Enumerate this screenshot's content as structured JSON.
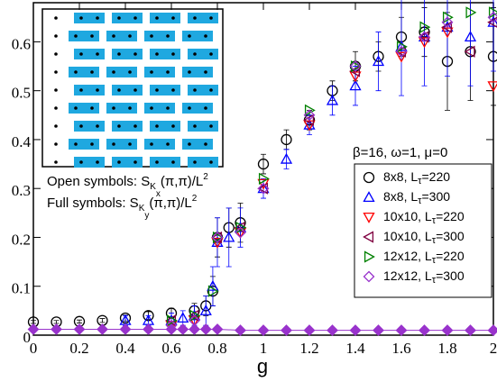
{
  "chart_data": {
    "type": "scatter",
    "x_label": "g",
    "xlim": [
      0,
      2
    ],
    "ylim": [
      0,
      0.68
    ],
    "xticks": [
      0,
      0.2,
      0.4,
      0.6,
      0.8,
      1,
      1.2,
      1.4,
      1.6,
      1.8,
      2
    ],
    "yticks": [
      0,
      0.1,
      0.2,
      0.3,
      0.4,
      0.5,
      0.6
    ],
    "params_label": "β=16, ω=1, μ=0",
    "inset_labels": [
      [
        "Open symbols: S",
        "K",
        "x",
        "(π,π)/L",
        "2"
      ],
      [
        "Full symbols: S",
        "K",
        "y",
        "(π,π)/L",
        "2"
      ]
    ],
    "legend": "lower right",
    "series": [
      {
        "name": "8x8, Lτ=220",
        "color": "#000000",
        "marker": "circle",
        "x": [
          0,
          0.1,
          0.2,
          0.3,
          0.4,
          0.5,
          0.6,
          0.7,
          0.75,
          0.78,
          0.8,
          0.85,
          0.9,
          1.0,
          1.1,
          1.2,
          1.3,
          1.4,
          1.5,
          1.6,
          1.7,
          1.8,
          1.9,
          2.0
        ],
        "values": [
          0.027,
          0.027,
          0.028,
          0.03,
          0.035,
          0.04,
          0.045,
          0.05,
          0.06,
          0.09,
          0.2,
          0.22,
          0.23,
          0.35,
          0.4,
          0.44,
          0.5,
          0.55,
          0.57,
          0.61,
          0.62,
          0.56,
          0.58,
          0.57
        ],
        "errors": [
          0.003,
          0.003,
          0.003,
          0.004,
          0.006,
          0.008,
          0.01,
          0.015,
          0.02,
          0.03,
          0.04,
          0.04,
          0.04,
          0.02,
          0.02,
          0.02,
          0.02,
          0.03,
          0.03,
          0.04,
          0.05,
          0.1,
          0.1,
          0.1
        ]
      },
      {
        "name": "8x8, Lτ=300",
        "color": "#0000ff",
        "marker": "up",
        "x": [
          0.4,
          0.5,
          0.6,
          0.65,
          0.7,
          0.75,
          0.78,
          0.8,
          0.85,
          0.9,
          1.0,
          1.1,
          1.2,
          1.3,
          1.4,
          1.5,
          1.6,
          1.7,
          1.8,
          1.9,
          2.0
        ],
        "values": [
          0.03,
          0.03,
          0.03,
          0.035,
          0.04,
          0.05,
          0.1,
          0.19,
          0.2,
          0.22,
          0.3,
          0.36,
          0.43,
          0.48,
          0.51,
          0.56,
          0.59,
          0.61,
          0.63,
          0.61,
          0.64
        ],
        "errors": [
          0.01,
          0.01,
          0.015,
          0.015,
          0.02,
          0.03,
          0.04,
          0.05,
          0.06,
          0.04,
          0.02,
          0.02,
          0.02,
          0.03,
          0.04,
          0.06,
          0.1,
          0.1,
          0.1,
          0.1,
          0.1
        ]
      },
      {
        "name": "10x10, Lτ=220",
        "color": "#ff0000",
        "marker": "down",
        "x": [
          0.6,
          0.7,
          0.8,
          0.9,
          1.0,
          1.2,
          1.4,
          1.6,
          1.7,
          1.8,
          2.0
        ],
        "values": [
          0.02,
          0.03,
          0.19,
          0.21,
          0.31,
          0.43,
          0.53,
          0.57,
          0.6,
          0.62,
          0.51
        ]
      },
      {
        "name": "10x10, Lτ=300",
        "color": "#800040",
        "marker": "left",
        "x": [
          0.6,
          0.7,
          0.8,
          0.9,
          1.0,
          1.2,
          1.4,
          1.6,
          1.7,
          1.8,
          1.9,
          2.0
        ],
        "values": [
          0.03,
          0.04,
          0.2,
          0.22,
          0.3,
          0.44,
          0.54,
          0.58,
          0.61,
          0.63,
          0.58,
          0.64
        ]
      },
      {
        "name": "12x12, Lτ=220",
        "color": "#008000",
        "marker": "right",
        "x": [
          0.6,
          0.7,
          0.78,
          0.8,
          0.9,
          1.0,
          1.2,
          1.4,
          1.6,
          1.7,
          1.8,
          1.9,
          2.0
        ],
        "values": [
          0.03,
          0.04,
          0.09,
          0.2,
          0.22,
          0.32,
          0.46,
          0.55,
          0.59,
          0.63,
          0.65,
          0.66,
          0.66
        ]
      },
      {
        "name": "12x12, Lτ=300",
        "color": "#9933cc",
        "marker": "diamond",
        "x": [
          0.6,
          0.7,
          0.8,
          0.9,
          1.0,
          1.2,
          1.4,
          1.6,
          1.7,
          1.8,
          2.0
        ],
        "values": [
          0.02,
          0.03,
          0.2,
          0.21,
          0.3,
          0.45,
          0.55,
          0.58,
          0.61,
          0.64,
          0.65
        ]
      },
      {
        "color": "#9933cc",
        "marker": "diamond",
        "filled": true,
        "x": [
          0,
          0.1,
          0.2,
          0.3,
          0.4,
          0.5,
          0.6,
          0.65,
          0.7,
          0.75,
          0.8,
          0.9,
          1.0,
          1.1,
          1.2,
          1.3,
          1.4,
          1.5,
          1.6,
          1.7,
          1.8,
          1.9,
          2.0
        ],
        "values": [
          0.012,
          0.012,
          0.012,
          0.012,
          0.012,
          0.012,
          0.012,
          0.012,
          0.012,
          0.012,
          0.012,
          0.01,
          0.01,
          0.01,
          0.01,
          0.01,
          0.01,
          0.01,
          0.01,
          0.01,
          0.01,
          0.01,
          0.01
        ]
      }
    ]
  }
}
